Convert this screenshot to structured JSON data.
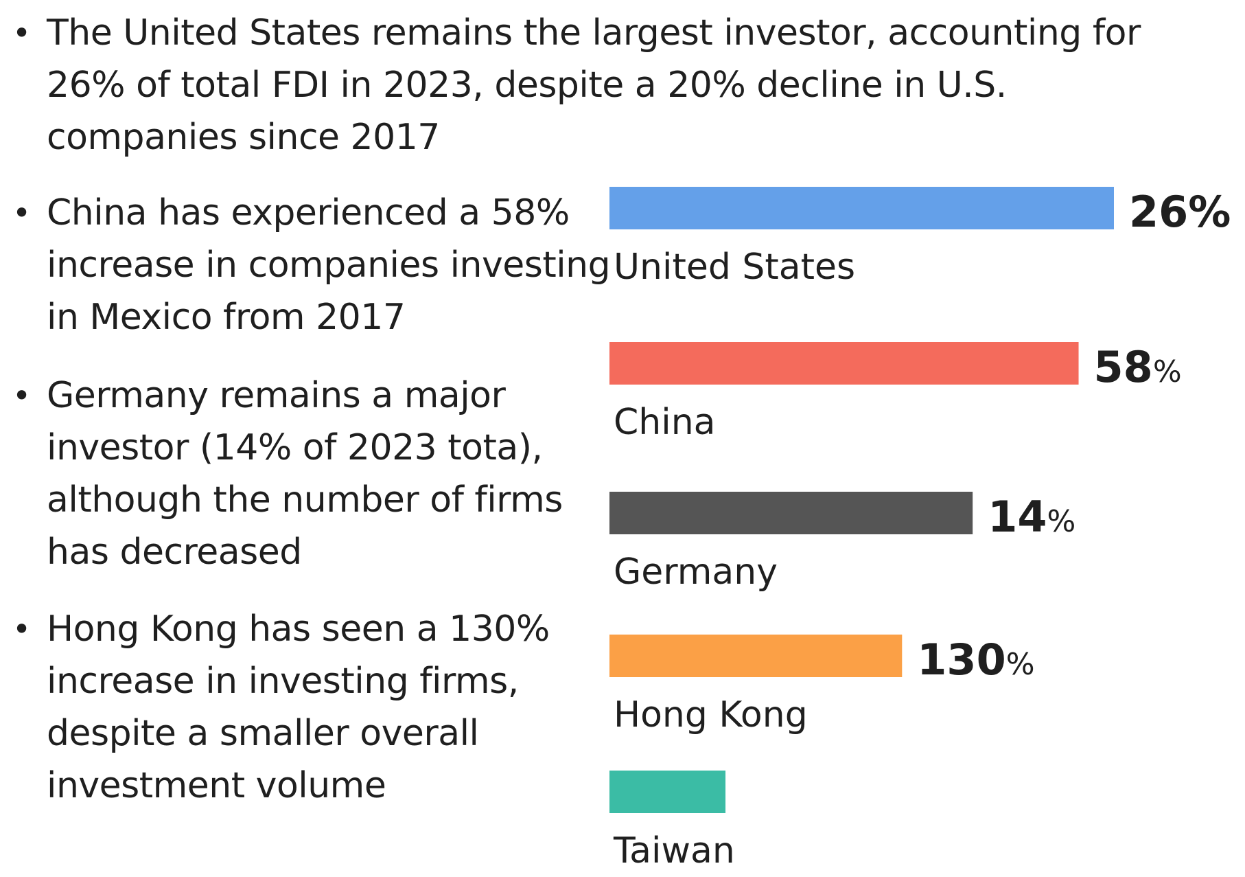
{
  "bullets": [
    {
      "text": "The United States remains the largest investor, accounting for 26% of total FDI in 2023, despite a 20% decline in U.S. companies since 2017"
    },
    {
      "text": "China has experienced a 58% increase in companies investing in Mexico from 2017"
    },
    {
      "text": "Germany remains a major investor (14% of 2023 tota), although the number of firms has decreased"
    },
    {
      "text": "Hong Kong has seen a 130% increase in investing firms, despite a smaller overall investment volume"
    }
  ],
  "bullet_symbol": "•",
  "chart_data": {
    "type": "bar",
    "orientation": "horizontal",
    "categories": [
      "United States",
      "China",
      "Germany",
      "Hong Kong",
      "Taiwan"
    ],
    "series": [
      {
        "values": [
          26,
          58,
          14,
          130,
          null
        ]
      }
    ],
    "value_labels": [
      {
        "number": "26",
        "unit": "%"
      },
      {
        "number": "58",
        "unit": "%"
      },
      {
        "number": "14",
        "unit": "%"
      },
      {
        "number": "130",
        "unit": "%"
      },
      null
    ],
    "relative_bar_length": [
      1.0,
      0.93,
      0.72,
      0.58,
      0.23
    ],
    "colors": [
      "#64a0e9",
      "#f46b5c",
      "#555555",
      "#fba046",
      "#3bbca5"
    ],
    "grid": false,
    "legend": "none",
    "axes_visible": false
  }
}
